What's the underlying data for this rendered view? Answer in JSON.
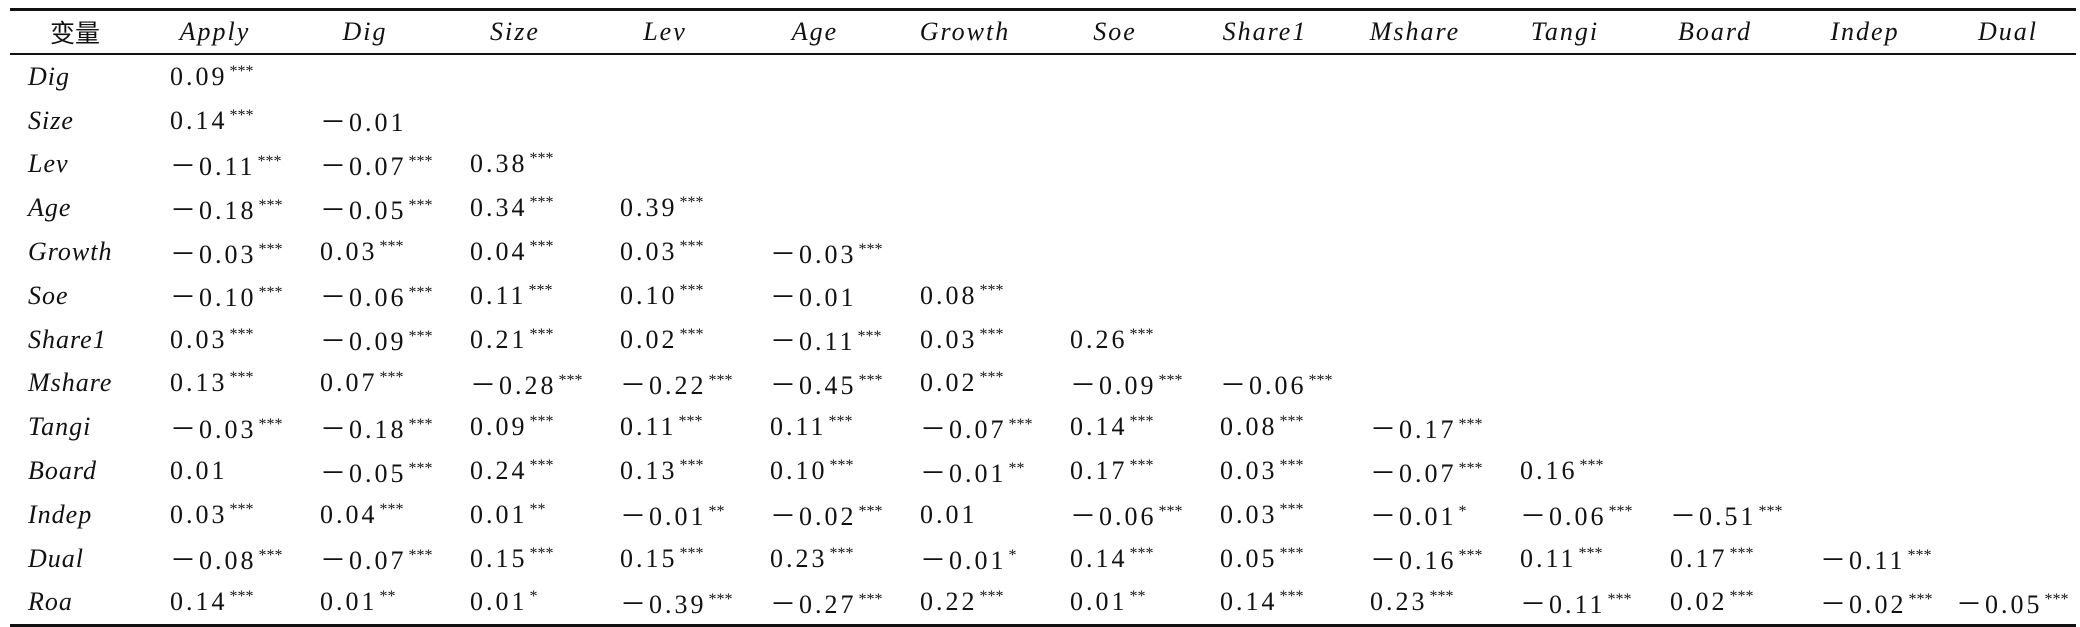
{
  "table": {
    "corner_label": "变量",
    "columns": [
      "Apply",
      "Dig",
      "Size",
      "Lev",
      "Age",
      "Growth",
      "Soe",
      "Share1",
      "Mshare",
      "Tangi",
      "Board",
      "Indep",
      "Dual"
    ],
    "rows": [
      {
        "label": "Dig",
        "cells": [
          {
            "v": "0.09",
            "s": "***"
          }
        ]
      },
      {
        "label": "Size",
        "cells": [
          {
            "v": "0.14",
            "s": "***"
          },
          {
            "v": "－0.01",
            "s": ""
          }
        ]
      },
      {
        "label": "Lev",
        "cells": [
          {
            "v": "－0.11",
            "s": "***"
          },
          {
            "v": "－0.07",
            "s": "***"
          },
          {
            "v": "0.38",
            "s": "***"
          }
        ]
      },
      {
        "label": "Age",
        "cells": [
          {
            "v": "－0.18",
            "s": "***"
          },
          {
            "v": "－0.05",
            "s": "***"
          },
          {
            "v": "0.34",
            "s": "***"
          },
          {
            "v": "0.39",
            "s": "***"
          }
        ]
      },
      {
        "label": "Growth",
        "cells": [
          {
            "v": "－0.03",
            "s": "***"
          },
          {
            "v": "0.03",
            "s": "***"
          },
          {
            "v": "0.04",
            "s": "***"
          },
          {
            "v": "0.03",
            "s": "***"
          },
          {
            "v": "－0.03",
            "s": "***"
          }
        ]
      },
      {
        "label": "Soe",
        "cells": [
          {
            "v": "－0.10",
            "s": "***"
          },
          {
            "v": "－0.06",
            "s": "***"
          },
          {
            "v": "0.11",
            "s": "***"
          },
          {
            "v": "0.10",
            "s": "***"
          },
          {
            "v": "－0.01",
            "s": ""
          },
          {
            "v": "0.08",
            "s": "***"
          }
        ]
      },
      {
        "label": "Share1",
        "cells": [
          {
            "v": "0.03",
            "s": "***"
          },
          {
            "v": "－0.09",
            "s": "***"
          },
          {
            "v": "0.21",
            "s": "***"
          },
          {
            "v": "0.02",
            "s": "***"
          },
          {
            "v": "－0.11",
            "s": "***"
          },
          {
            "v": "0.03",
            "s": "***"
          },
          {
            "v": "0.26",
            "s": "***"
          }
        ]
      },
      {
        "label": "Mshare",
        "cells": [
          {
            "v": "0.13",
            "s": "***"
          },
          {
            "v": "0.07",
            "s": "***"
          },
          {
            "v": "－0.28",
            "s": "***"
          },
          {
            "v": "－0.22",
            "s": "***"
          },
          {
            "v": "－0.45",
            "s": "***"
          },
          {
            "v": "0.02",
            "s": "***"
          },
          {
            "v": "－0.09",
            "s": "***"
          },
          {
            "v": "－0.06",
            "s": "***"
          }
        ]
      },
      {
        "label": "Tangi",
        "cells": [
          {
            "v": "－0.03",
            "s": "***"
          },
          {
            "v": "－0.18",
            "s": "***"
          },
          {
            "v": "0.09",
            "s": "***"
          },
          {
            "v": "0.11",
            "s": "***"
          },
          {
            "v": "0.11",
            "s": "***"
          },
          {
            "v": "－0.07",
            "s": "***"
          },
          {
            "v": "0.14",
            "s": "***"
          },
          {
            "v": "0.08",
            "s": "***"
          },
          {
            "v": "－0.17",
            "s": "***"
          }
        ]
      },
      {
        "label": "Board",
        "cells": [
          {
            "v": "0.01",
            "s": ""
          },
          {
            "v": "－0.05",
            "s": "***"
          },
          {
            "v": "0.24",
            "s": "***"
          },
          {
            "v": "0.13",
            "s": "***"
          },
          {
            "v": "0.10",
            "s": "***"
          },
          {
            "v": "－0.01",
            "s": "**"
          },
          {
            "v": "0.17",
            "s": "***"
          },
          {
            "v": "0.03",
            "s": "***"
          },
          {
            "v": "－0.07",
            "s": "***"
          },
          {
            "v": "0.16",
            "s": "***"
          }
        ]
      },
      {
        "label": "Indep",
        "cells": [
          {
            "v": "0.03",
            "s": "***"
          },
          {
            "v": "0.04",
            "s": "***"
          },
          {
            "v": "0.01",
            "s": "**"
          },
          {
            "v": "－0.01",
            "s": "**"
          },
          {
            "v": "－0.02",
            "s": "***"
          },
          {
            "v": "0.01",
            "s": ""
          },
          {
            "v": "－0.06",
            "s": "***"
          },
          {
            "v": "0.03",
            "s": "***"
          },
          {
            "v": "－0.01",
            "s": "*"
          },
          {
            "v": "－0.06",
            "s": "***"
          },
          {
            "v": "－0.51",
            "s": "***"
          }
        ]
      },
      {
        "label": "Dual",
        "cells": [
          {
            "v": "－0.08",
            "s": "***"
          },
          {
            "v": "－0.07",
            "s": "***"
          },
          {
            "v": "0.15",
            "s": "***"
          },
          {
            "v": "0.15",
            "s": "***"
          },
          {
            "v": "0.23",
            "s": "***"
          },
          {
            "v": "－0.01",
            "s": "*"
          },
          {
            "v": "0.14",
            "s": "***"
          },
          {
            "v": "0.05",
            "s": "***"
          },
          {
            "v": "－0.16",
            "s": "***"
          },
          {
            "v": "0.11",
            "s": "***"
          },
          {
            "v": "0.17",
            "s": "***"
          },
          {
            "v": "－0.11",
            "s": "***"
          }
        ]
      },
      {
        "label": "Roa",
        "cells": [
          {
            "v": "0.14",
            "s": "***"
          },
          {
            "v": "0.01",
            "s": "**"
          },
          {
            "v": "0.01",
            "s": "*"
          },
          {
            "v": "－0.39",
            "s": "***"
          },
          {
            "v": "－0.27",
            "s": "***"
          },
          {
            "v": "0.22",
            "s": "***"
          },
          {
            "v": "0.01",
            "s": "**"
          },
          {
            "v": "0.14",
            "s": "***"
          },
          {
            "v": "0.23",
            "s": "***"
          },
          {
            "v": "－0.11",
            "s": "***"
          },
          {
            "v": "0.02",
            "s": "***"
          },
          {
            "v": "－0.02",
            "s": "***"
          },
          {
            "v": "－0.05",
            "s": "***"
          }
        ]
      }
    ]
  }
}
